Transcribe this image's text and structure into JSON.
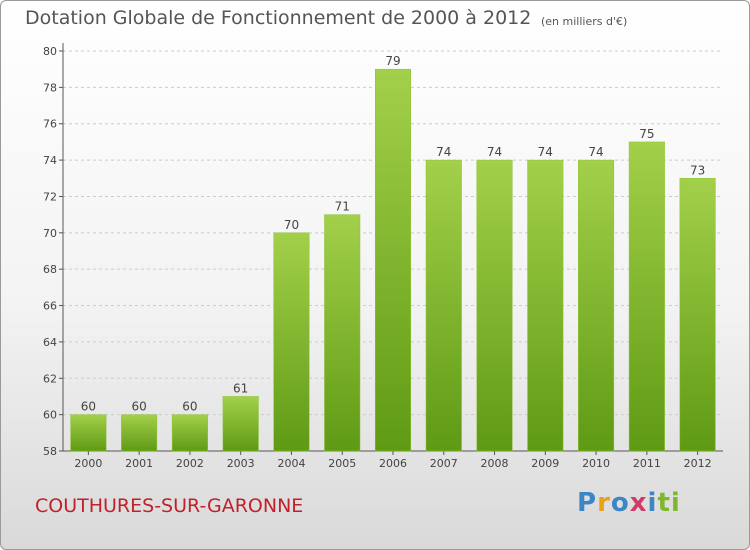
{
  "title": "Dotation Globale de Fonctionnement de 2000 à 2012",
  "subtitle": "(en milliers d'€)",
  "commune": "COUTHURES-SUR-GARONNE",
  "logo": {
    "letters": [
      "P",
      "r",
      "o",
      "x",
      "i",
      "ti"
    ]
  },
  "colors": {
    "bar_top": "#a3d04a",
    "bar_bottom": "#5f9a14",
    "axis": "#555555",
    "grid": "#cccccc",
    "commune": "#c0212b"
  },
  "chart_data": {
    "type": "bar",
    "title": "Dotation Globale de Fonctionnement de 2000 à 2012",
    "subtitle": "(en milliers d'€)",
    "categories": [
      "2000",
      "2001",
      "2002",
      "2003",
      "2004",
      "2005",
      "2006",
      "2007",
      "2008",
      "2009",
      "2010",
      "2011",
      "2012"
    ],
    "values": [
      60,
      60,
      60,
      61,
      70,
      71,
      79,
      74,
      74,
      74,
      74,
      75,
      73
    ],
    "ylim": [
      58,
      80
    ],
    "yticks": [
      58,
      60,
      62,
      64,
      66,
      68,
      70,
      72,
      74,
      76,
      78,
      80
    ],
    "grid": true,
    "data_labels": true
  }
}
